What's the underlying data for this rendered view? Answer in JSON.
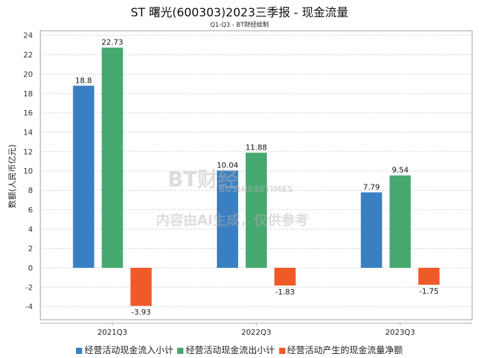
{
  "chart_data": {
    "type": "bar",
    "title": "ST 曙光(600303)2023三季报 - 现金流量",
    "subtitle": "Q1-Q3 - BT财经绘制",
    "ylabel": "数额(人民币亿元)",
    "xlabel": "",
    "categories": [
      "2021Q3",
      "2022Q3",
      "2023Q3"
    ],
    "series": [
      {
        "name": "经营活动现金流入小计",
        "color": "#3a7fc1",
        "values": [
          18.8,
          10.04,
          7.79
        ]
      },
      {
        "name": "经营活动现金流出小计",
        "color": "#46a970",
        "values": [
          22.73,
          11.88,
          9.54
        ]
      },
      {
        "name": "经营活动产生的现金流量净额",
        "color": "#f05a28",
        "values": [
          -3.93,
          -1.83,
          -1.75
        ]
      }
    ],
    "ylim": [
      -5.5,
      24
    ],
    "yticks": [
      24,
      22,
      20,
      18,
      16,
      14,
      12,
      10,
      8,
      6,
      4,
      2,
      0,
      -2,
      -4
    ],
    "grid": true,
    "legend": "bottom"
  },
  "watermark": {
    "logo": "BT财经",
    "logo_sub": "BUSINESSTIMES",
    "notice": "内容由AI生成，仅供参考"
  }
}
